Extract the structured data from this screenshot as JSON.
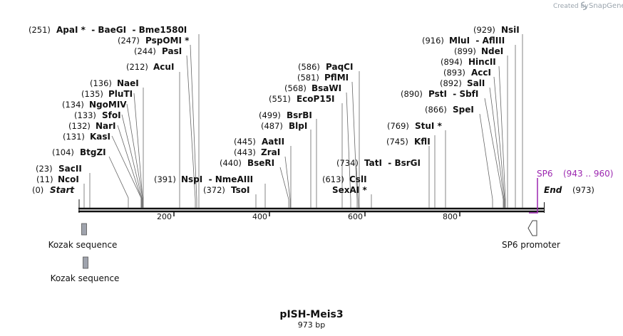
{
  "title": "pISH-Meis3",
  "subtitle": "973 bp",
  "credit_created_by": "Created by",
  "credit_brand": "SnapGene",
  "sequence_length": 973,
  "axis_ticks": [
    200,
    400,
    600,
    800
  ],
  "start_label": {
    "pos": "(0)",
    "name": "Start"
  },
  "end_label": {
    "pos": "(973)",
    "name": "End"
  },
  "enzymes": [
    {
      "pos": "(11)",
      "name": "NcoI",
      "site": 11
    },
    {
      "pos": "(23)",
      "name": "SacII",
      "site": 23
    },
    {
      "pos": "(104)",
      "name": "BtgZI",
      "site": 104
    },
    {
      "pos": "(131)",
      "name": "KasI",
      "site": 131
    },
    {
      "pos": "(132)",
      "name": "NarI",
      "site": 132
    },
    {
      "pos": "(133)",
      "name": "SfoI",
      "site": 133
    },
    {
      "pos": "(134)",
      "name": "NgoMIV",
      "site": 134
    },
    {
      "pos": "(135)",
      "name": "PluTI",
      "site": 135
    },
    {
      "pos": "(136)",
      "name": "NaeI",
      "site": 136
    },
    {
      "pos": "(212)",
      "name": "AcuI",
      "site": 212
    },
    {
      "pos": "(244)",
      "name": "PasI",
      "site": 244
    },
    {
      "pos": "(247)",
      "name": "PspOMI *",
      "site": 247
    },
    {
      "pos": "(251)",
      "name": "ApaI *  - BaeGI  - Bme1580I",
      "site": 251
    },
    {
      "pos": "(372)",
      "name": "TsoI",
      "site": 372
    },
    {
      "pos": "(391)",
      "name": "NspI  - NmeAIII",
      "site": 391
    },
    {
      "pos": "(440)",
      "name": "BseRI",
      "site": 440
    },
    {
      "pos": "(443)",
      "name": "ZraI",
      "site": 443
    },
    {
      "pos": "(445)",
      "name": "AatII",
      "site": 445
    },
    {
      "pos": "(487)",
      "name": "BlpI",
      "site": 487
    },
    {
      "pos": "(499)",
      "name": "BsrBI",
      "site": 499
    },
    {
      "pos": "(551)",
      "name": "EcoP15I",
      "site": 551
    },
    {
      "pos": "(568)",
      "name": "BsaWI",
      "site": 568
    },
    {
      "pos": "(581)",
      "name": "PflMI",
      "site": 581
    },
    {
      "pos": "(586)",
      "name": "PaqCI",
      "site": 586
    },
    {
      "pos": "(613)",
      "name": "CslI",
      "site": 613
    },
    {
      "pos": "",
      "name": "SexAI *",
      "site": 613
    },
    {
      "pos": "(734)",
      "name": "TatI  - BsrGI",
      "site": 734
    },
    {
      "pos": "(745)",
      "name": "KflI",
      "site": 745
    },
    {
      "pos": "(769)",
      "name": "StuI *",
      "site": 769
    },
    {
      "pos": "(866)",
      "name": "SpeI",
      "site": 866
    },
    {
      "pos": "(890)",
      "name": "PstI  - SbfI",
      "site": 890
    },
    {
      "pos": "(892)",
      "name": "SalI",
      "site": 892
    },
    {
      "pos": "(893)",
      "name": "AccI",
      "site": 893
    },
    {
      "pos": "(894)",
      "name": "HincII",
      "site": 894
    },
    {
      "pos": "(899)",
      "name": "NdeI",
      "site": 899
    },
    {
      "pos": "(916)",
      "name": "MluI  - AflIII",
      "site": 916
    },
    {
      "pos": "(929)",
      "name": "NsiI",
      "site": 929
    }
  ],
  "features": [
    {
      "name": "Kozak sequence",
      "color": "#9fa3ad"
    },
    {
      "name": "Kozak sequence",
      "color": "#9fa3ad"
    },
    {
      "name": "SP6 promoter",
      "color": "#ffffff"
    }
  ],
  "primer": {
    "name": "SP6",
    "range": "(943 .. 960)",
    "color": "#9c27b0"
  }
}
